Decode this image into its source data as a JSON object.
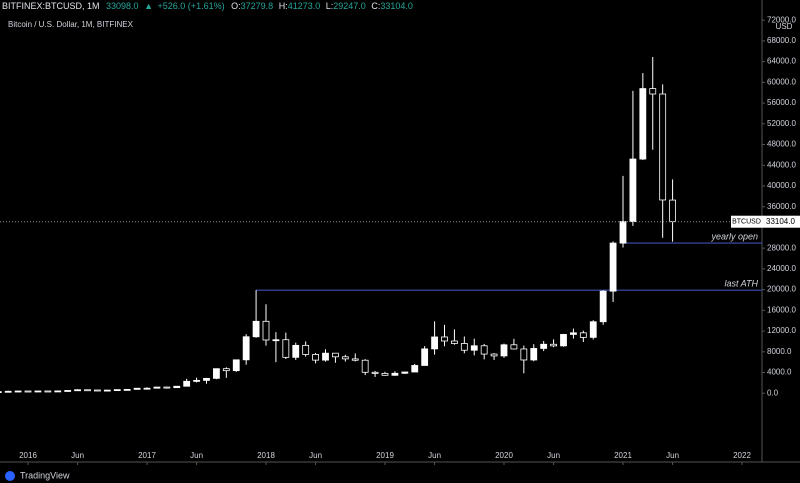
{
  "header": {
    "symbol": "BITFINEX:BTCUSD, 1M",
    "last": "33098.0",
    "arrow": "▲",
    "change": "+526.0 (+1.61%)",
    "o_label": "O:",
    "o": "37279.8",
    "h_label": "H:",
    "h": "41273.0",
    "l_label": "L:",
    "l": "29247.0",
    "c_label": "C:",
    "c": "33104.0"
  },
  "footer": {
    "brand": "TradingView"
  },
  "chart_data": {
    "type": "candlestick",
    "subtitle": "Bitcoin / U.S. Dollar, 1M, BITFINEX",
    "y_unit": "USD",
    "color": "#ffffff",
    "x": [
      "2015-10",
      "2015-11",
      "2015-12",
      "2016-01",
      "2016-02",
      "2016-03",
      "2016-04",
      "2016-05",
      "2016-06",
      "2016-07",
      "2016-08",
      "2016-09",
      "2016-10",
      "2016-11",
      "2016-12",
      "2017-01",
      "2017-02",
      "2017-03",
      "2017-04",
      "2017-05",
      "2017-06",
      "2017-07",
      "2017-08",
      "2017-09",
      "2017-10",
      "2017-11",
      "2017-12",
      "2018-01",
      "2018-02",
      "2018-03",
      "2018-04",
      "2018-05",
      "2018-06",
      "2018-07",
      "2018-08",
      "2018-09",
      "2018-10",
      "2018-11",
      "2018-12",
      "2019-01",
      "2019-02",
      "2019-03",
      "2019-04",
      "2019-05",
      "2019-06",
      "2019-07",
      "2019-08",
      "2019-09",
      "2019-10",
      "2019-11",
      "2019-12",
      "2020-01",
      "2020-02",
      "2020-03",
      "2020-04",
      "2020-05",
      "2020-06",
      "2020-07",
      "2020-08",
      "2020-09",
      "2020-10",
      "2020-11",
      "2020-12",
      "2021-01",
      "2021-02",
      "2021-03",
      "2021-04",
      "2021-05",
      "2021-06"
    ],
    "open": [
      237,
      314,
      377,
      430,
      368,
      437,
      416,
      448,
      531,
      674,
      624,
      574,
      609,
      700,
      742,
      963,
      970,
      1190,
      1080,
      1350,
      2300,
      2480,
      2870,
      4740,
      4360,
      6450,
      10900,
      13880,
      10280,
      10330,
      6930,
      9240,
      7490,
      6390,
      7730,
      7030,
      6630,
      6370,
      4040,
      3830,
      3460,
      3850,
      4100,
      5360,
      8560,
      10860,
      10080,
      9600,
      8300,
      9160,
      7560,
      7200,
      9350,
      8540,
      6420,
      8640,
      9450,
      9140,
      11350,
      11660,
      10780,
      13800,
      19700,
      28980,
      33140,
      45200,
      58800,
      57750,
      37279.8
    ],
    "high": [
      316,
      495,
      470,
      460,
      448,
      440,
      470,
      550,
      780,
      690,
      630,
      630,
      720,
      755,
      975,
      1165,
      1210,
      1300,
      1360,
      2790,
      3000,
      2930,
      4750,
      5000,
      6470,
      11400,
      19890,
      17170,
      11780,
      11700,
      9770,
      9990,
      7770,
      8490,
      7760,
      7410,
      7680,
      6580,
      4300,
      4150,
      4240,
      4130,
      5650,
      9100,
      13880,
      13200,
      12330,
      10950,
      10540,
      9520,
      7750,
      9580,
      10500,
      9200,
      9470,
      10080,
      10400,
      11450,
      12480,
      12070,
      14100,
      19890,
      29300,
      41950,
      58350,
      61800,
      64900,
      59600,
      41273
    ],
    "low": [
      236,
      300,
      350,
      355,
      365,
      400,
      410,
      440,
      520,
      470,
      480,
      570,
      605,
      680,
      742,
      752,
      915,
      890,
      1060,
      1340,
      2080,
      1830,
      2710,
      2970,
      4110,
      5500,
      10700,
      9200,
      6000,
      6600,
      6430,
      7060,
      5760,
      6110,
      5880,
      6110,
      6140,
      3500,
      3150,
      3400,
      3370,
      3710,
      4080,
      5340,
      7440,
      9080,
      9360,
      7710,
      7300,
      6540,
      6430,
      6860,
      8450,
      3850,
      6160,
      8130,
      8900,
      8970,
      10540,
      9880,
      10380,
      13210,
      17600,
      28130,
      32300,
      45000,
      47000,
      30000,
      29247
    ],
    "close": [
      314,
      377,
      430,
      368,
      437,
      416,
      448,
      531,
      674,
      624,
      574,
      609,
      700,
      742,
      963,
      970,
      1190,
      1080,
      1350,
      2300,
      2480,
      2870,
      4740,
      4360,
      6450,
      10900,
      13880,
      10280,
      10330,
      6930,
      9240,
      7490,
      6390,
      7730,
      7030,
      6630,
      6370,
      4040,
      3830,
      3460,
      3850,
      4100,
      5360,
      8560,
      10860,
      10080,
      9600,
      8300,
      9160,
      7560,
      7200,
      9350,
      8540,
      6420,
      8640,
      9450,
      9140,
      11350,
      11660,
      10780,
      13800,
      19700,
      28980,
      33140,
      45200,
      58800,
      57750,
      37300,
      33104
    ],
    "last_price_name": "BTCUSD",
    "last_price_label": "33104.0",
    "ylim": [
      -12500,
      73000
    ],
    "yticks": [
      {
        "value": 0,
        "label": "0.0"
      },
      {
        "value": 4000,
        "label": "4000.0"
      },
      {
        "value": 8000,
        "label": "8000.0"
      },
      {
        "value": 12000,
        "label": "12000.0"
      },
      {
        "value": 16000,
        "label": "16000.0"
      },
      {
        "value": 20000,
        "label": "20000.0"
      },
      {
        "value": 24000,
        "label": "24000.0"
      },
      {
        "value": 28000,
        "label": "28000.0"
      },
      {
        "value": 36000,
        "label": "36000.0"
      },
      {
        "value": 40000,
        "label": "40000.0"
      },
      {
        "value": 44000,
        "label": "44000.0"
      },
      {
        "value": 48000,
        "label": "48000.0"
      },
      {
        "value": 52000,
        "label": "52000.0"
      },
      {
        "value": 56000,
        "label": "56000.0"
      },
      {
        "value": 60000,
        "label": "60000.0"
      },
      {
        "value": 64000,
        "label": "64000.0"
      },
      {
        "value": 68000,
        "label": "68000.0"
      },
      {
        "value": 72000,
        "label": "72000.0"
      }
    ],
    "xticks": [
      {
        "value": "2016-01",
        "label": "2016"
      },
      {
        "value": "2016-06",
        "label": "Jun"
      },
      {
        "value": "2017-01",
        "label": "2017"
      },
      {
        "value": "2017-06",
        "label": "Jun"
      },
      {
        "value": "2018-01",
        "label": "2018"
      },
      {
        "value": "2018-06",
        "label": "Jun"
      },
      {
        "value": "2019-01",
        "label": "2019"
      },
      {
        "value": "2019-06",
        "label": "Jun"
      },
      {
        "value": "2020-01",
        "label": "2020"
      },
      {
        "value": "2020-06",
        "label": "Jun"
      },
      {
        "value": "2021-01",
        "label": "2021"
      },
      {
        "value": "2021-06",
        "label": "Jun"
      },
      {
        "value": "2022-01",
        "label": "2022"
      }
    ],
    "annotations": [
      {
        "text": "yearly open",
        "value": 28980,
        "from": "2021-01",
        "color": "#3f51b5"
      },
      {
        "text": "last ATH",
        "value": 19890,
        "from": "2017-12",
        "color": "#3f51b5"
      }
    ]
  }
}
